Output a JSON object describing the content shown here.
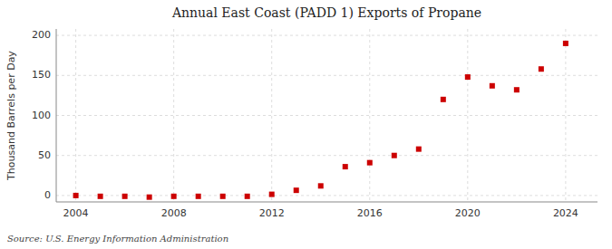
{
  "chart_data": {
    "type": "scatter",
    "title": "Annual East Coast (PADD 1) Exports of Propane",
    "ylabel": "Thousand Barrels per Day",
    "annotations": [
      "Source: U.S. Energy Information Administration"
    ],
    "x": [
      2004,
      2005,
      2006,
      2007,
      2008,
      2009,
      2010,
      2011,
      2012,
      2013,
      2014,
      2015,
      2016,
      2017,
      2018,
      2019,
      2020,
      2021,
      2022,
      2023,
      2024
    ],
    "values": [
      0.0,
      -1.0,
      -1.0,
      -2.0,
      -1.0,
      -1.0,
      -1.0,
      -1.0,
      1.5,
      6.5,
      12.0,
      36.0,
      41.0,
      50.0,
      58.0,
      120.0,
      148.0,
      137.0,
      132.0,
      158.0,
      190.0
    ],
    "color": "#cc0000",
    "marker": "square",
    "xlim": [
      2003.2,
      2025.3
    ],
    "ylim": [
      -8,
      208
    ],
    "xticks": [
      2004,
      2008,
      2012,
      2016,
      2020,
      2024
    ],
    "yticks": [
      0,
      50,
      100,
      150,
      200
    ],
    "grid": true
  }
}
